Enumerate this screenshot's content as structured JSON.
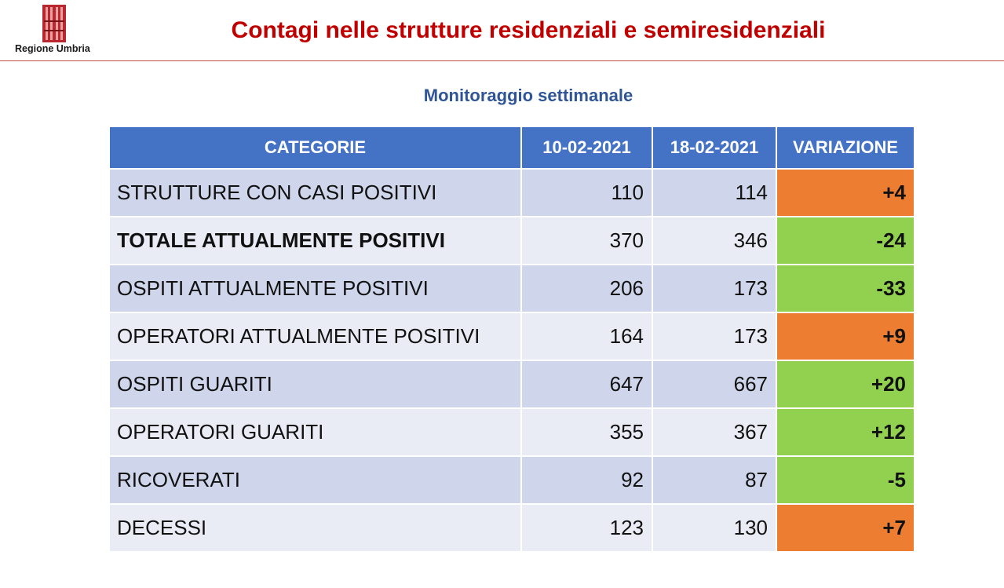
{
  "header": {
    "logo_text": "Regione Umbria",
    "title": "Contagi nelle strutture residenziali e semiresidenziali"
  },
  "subtitle": "Monitoraggio settimanale",
  "colors": {
    "title": "#c00000",
    "subtitle": "#2f5597",
    "header_bg": "#4472c4",
    "increase": "#ed7d31",
    "decrease": "#92d050",
    "row_dark": "#cfd5ea",
    "row_light": "#e9ebf5"
  },
  "table": {
    "headers": [
      "CATEGORIE",
      "10-02-2021",
      "18-02-2021",
      "VARIAZIONE"
    ],
    "rows": [
      {
        "category": "STRUTTURE CON CASI POSITIVI",
        "v1": "110",
        "v2": "114",
        "variation": "+4",
        "trend": "up",
        "bold": false
      },
      {
        "category": "TOTALE ATTUALMENTE POSITIVI",
        "v1": "370",
        "v2": "346",
        "variation": "-24",
        "trend": "down",
        "bold": true
      },
      {
        "category": "OSPITI ATTUALMENTE POSITIVI",
        "v1": "206",
        "v2": "173",
        "variation": "-33",
        "trend": "down",
        "bold": false
      },
      {
        "category": "OPERATORI ATTUALMENTE POSITIVI",
        "v1": "164",
        "v2": "173",
        "variation": "+9",
        "trend": "up",
        "bold": false
      },
      {
        "category": "OSPITI GUARITI",
        "v1": "647",
        "v2": "667",
        "variation": "+20",
        "trend": "down",
        "bold": false
      },
      {
        "category": "OPERATORI GUARITI",
        "v1": "355",
        "v2": "367",
        "variation": "+12",
        "trend": "down",
        "bold": false
      },
      {
        "category": "RICOVERATI",
        "v1": "92",
        "v2": "87",
        "variation": "-5",
        "trend": "down",
        "bold": false
      },
      {
        "category": "DECESSI",
        "v1": "123",
        "v2": "130",
        "variation": "+7",
        "trend": "up",
        "bold": false
      }
    ]
  }
}
